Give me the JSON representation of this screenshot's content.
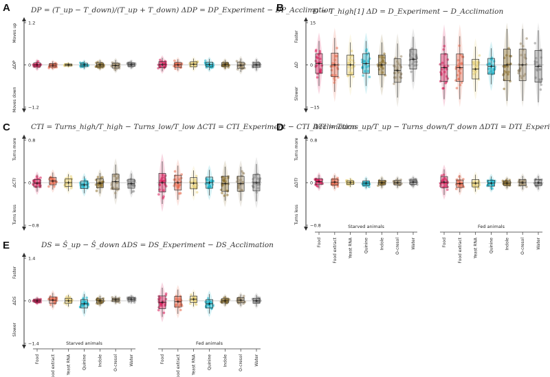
{
  "categories": [
    "Food",
    "Food extract",
    "Yeast RNA",
    "Quinine",
    "Indole",
    "O-cresol",
    "Water"
  ],
  "colors": [
    "#d81b5a",
    "#e86b4f",
    "#e8d27a",
    "#1ab3c8",
    "#8c6f2b",
    "#9c8a6a",
    "#8a8a8a"
  ],
  "groups": [
    "Starved animals",
    "Fed animals"
  ],
  "chart_data": [
    {
      "panel": "A",
      "type": "scatter",
      "title": "DP = (T_up − T_down)/(T_up + T_down)    ΔDP = DP_Experiment − DP_Acclimation",
      "ylabel": "Moves down  ΔDP  Moves up",
      "ylabel_low": "Moves down",
      "ylabel_mid": "ΔDP",
      "ylabel_high": "Moves up",
      "ylim": [
        -1.2,
        1.2
      ],
      "yticks": [
        "1.2",
        "0",
        "−1.2"
      ],
      "series": [
        {
          "group": "Starved animals",
          "medians": [
            0.0,
            -0.01,
            0.0,
            0.0,
            0.0,
            -0.02,
            0.01
          ],
          "spread": [
            0.08,
            0.07,
            0.04,
            0.07,
            0.08,
            0.1,
            0.07
          ]
        },
        {
          "group": "Fed animals",
          "medians": [
            0.01,
            0.0,
            0.02,
            0.01,
            0.01,
            -0.01,
            0.0
          ],
          "spread": [
            0.12,
            0.1,
            0.1,
            0.1,
            0.08,
            0.12,
            0.1
          ]
        }
      ]
    },
    {
      "panel": "B",
      "type": "scatter",
      "title": "D = T_high[1]    ΔD = D_Experiment − D_Acclimation",
      "ylabel": "Slower  ΔD  Faster",
      "ylabel_low": "Slower",
      "ylabel_mid": "ΔD",
      "ylabel_high": "Faster",
      "ylim": [
        -15,
        15
      ],
      "yticks": [
        "15",
        "0",
        "−15"
      ],
      "series": [
        {
          "group": "Starved animals",
          "medians": [
            0.5,
            0.0,
            0.0,
            0.5,
            0.0,
            -2.0,
            2.0
          ],
          "spread": [
            5,
            6,
            5,
            5,
            5,
            6,
            5
          ]
        },
        {
          "group": "Fed animals",
          "medians": [
            -1.0,
            -1.0,
            -1.5,
            -0.5,
            0.0,
            0.0,
            -0.5
          ],
          "spread": [
            7,
            7,
            5,
            4,
            8,
            8,
            8
          ]
        }
      ]
    },
    {
      "panel": "C",
      "type": "scatter",
      "title": "CTI = Turns_high/T_high − Turns_low/T_low    ΔCTI = CTI_Experiment − CTI_Acclimation",
      "ylabel": "Turns less  ΔCTI  Turns more",
      "ylabel_low": "Turns less",
      "ylabel_mid": "ΔCTI",
      "ylabel_high": "Turns more",
      "ylim": [
        -0.8,
        0.8
      ],
      "yticks": [
        "0.8",
        "0",
        "−0.8"
      ],
      "series": [
        {
          "group": "Starved animals",
          "medians": [
            -0.01,
            0.03,
            0.0,
            -0.04,
            -0.01,
            0.02,
            -0.02
          ],
          "spread": [
            0.1,
            0.1,
            0.1,
            0.1,
            0.12,
            0.2,
            0.12
          ]
        },
        {
          "group": "Fed animals",
          "medians": [
            0.0,
            0.0,
            -0.01,
            0.0,
            -0.02,
            -0.02,
            0.0
          ],
          "spread": [
            0.25,
            0.2,
            0.15,
            0.15,
            0.2,
            0.2,
            0.22
          ]
        }
      ]
    },
    {
      "panel": "D",
      "type": "scatter",
      "title": "DTI = Turns_up/T_up − Turns_down/T_down    ΔDTI = DTI_Experiment − DTI_Acclimation",
      "ylabel": "Turns less  ΔDTI  Turns more",
      "ylabel_low": "Turns less",
      "ylabel_mid": "ΔDTI",
      "ylabel_high": "Turns more",
      "ylim": [
        -0.8,
        0.8
      ],
      "yticks": [
        "0.8",
        "0",
        "−0.8"
      ],
      "series": [
        {
          "group": "Starved animals",
          "medians": [
            0.02,
            0.01,
            0.0,
            -0.01,
            0.0,
            0.0,
            0.01
          ],
          "spread": [
            0.08,
            0.08,
            0.05,
            0.06,
            0.06,
            0.06,
            0.06
          ]
        },
        {
          "group": "Fed animals",
          "medians": [
            0.01,
            -0.02,
            -0.01,
            -0.01,
            -0.01,
            0.0,
            0.0
          ],
          "spread": [
            0.15,
            0.1,
            0.1,
            0.08,
            0.06,
            0.08,
            0.08
          ]
        }
      ]
    },
    {
      "panel": "E",
      "type": "scatter",
      "title": "DS = Ŝ_up − Ŝ_down    ΔDS = DS_Experiment − DS_Acclimation",
      "ylabel": "Slower  ΔDS  Faster",
      "ylabel_low": "Slower",
      "ylabel_mid": "ΔDS",
      "ylabel_high": "Faster",
      "ylim": [
        -1.4,
        1.4
      ],
      "yticks": [
        "1.4",
        "0",
        "−1.4"
      ],
      "series": [
        {
          "group": "Starved animals",
          "medians": [
            0.0,
            0.02,
            0.0,
            -0.1,
            0.0,
            0.03,
            0.05
          ],
          "spread": [
            0.07,
            0.15,
            0.12,
            0.2,
            0.1,
            0.08,
            0.08
          ]
        },
        {
          "group": "Fed animals",
          "medians": [
            -0.05,
            -0.03,
            0.05,
            -0.1,
            0.0,
            0.02,
            0.0
          ],
          "spread": [
            0.3,
            0.25,
            0.15,
            0.2,
            0.1,
            0.12,
            0.12
          ]
        }
      ]
    }
  ]
}
